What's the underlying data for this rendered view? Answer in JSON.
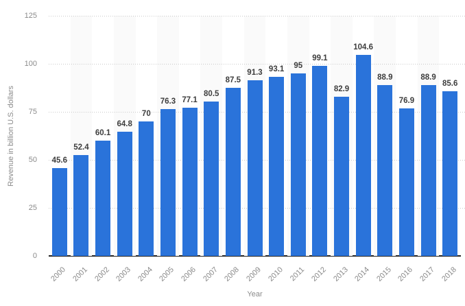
{
  "chart_data": {
    "type": "bar",
    "title": "",
    "xlabel": "Year",
    "ylabel": "Revenue in billion U.S. dollars",
    "categories": [
      "2000",
      "2001",
      "2002",
      "2003",
      "2004",
      "2005",
      "2006",
      "2007",
      "2008",
      "2009",
      "2010",
      "2011",
      "2012",
      "2013",
      "2014",
      "2015",
      "2016",
      "2017",
      "2018"
    ],
    "values": [
      45.6,
      52.4,
      60.1,
      64.8,
      70,
      76.3,
      77.1,
      80.5,
      87.5,
      91.3,
      93.1,
      95,
      99.1,
      82.9,
      104.6,
      88.9,
      76.9,
      88.9,
      85.6
    ],
    "ylim": [
      0,
      125
    ],
    "yticks": [
      0,
      25,
      50,
      75,
      100,
      125
    ],
    "grid": "horizontal-dotted",
    "legend": "none",
    "value_labels_shown": true,
    "colors": {
      "bar": "#2a73da",
      "value_label": "#3d3d3d",
      "tick_label": "#8a8a8a",
      "axis_title": "#8a8a8a",
      "gridline": "#c9c9c9",
      "axis_line": "#222222",
      "background_stripe": "#fafafa",
      "background": "#ffffff"
    }
  }
}
